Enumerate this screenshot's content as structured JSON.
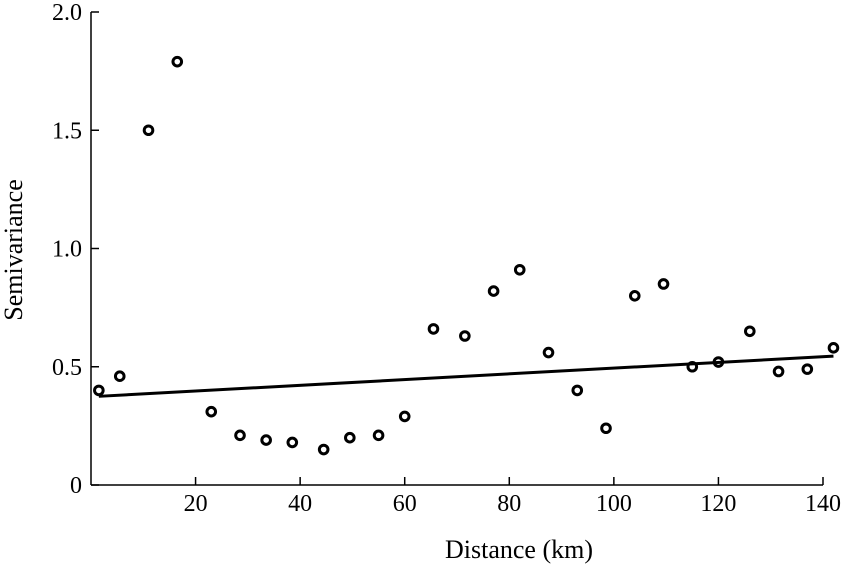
{
  "chart_data": {
    "type": "scatter",
    "xlabel": "Distance (km)",
    "ylabel": "Semivariance",
    "xlim": [
      0,
      140
    ],
    "ylim": [
      0,
      2.0
    ],
    "x_ticks": [
      20,
      40,
      60,
      80,
      100,
      120,
      140
    ],
    "x_tick_labels": [
      "20",
      "40",
      "60",
      "80",
      "100",
      "120",
      "140"
    ],
    "y_ticks": [
      0,
      0.5,
      1.0,
      1.5,
      2.0
    ],
    "y_tick_labels": [
      "0",
      "0.5",
      "1.0",
      "1.5",
      "2.0"
    ],
    "grid": false,
    "series": [
      {
        "points": [
          [
            1.5,
            0.4
          ],
          [
            5.5,
            0.46
          ],
          [
            11,
            1.5
          ],
          [
            16.5,
            1.79
          ],
          [
            23,
            0.31
          ],
          [
            28.5,
            0.21
          ],
          [
            33.5,
            0.19
          ],
          [
            38.5,
            0.18
          ],
          [
            44.5,
            0.15
          ],
          [
            49.5,
            0.2
          ],
          [
            55,
            0.21
          ],
          [
            60,
            0.29
          ],
          [
            65.5,
            0.66
          ],
          [
            71.5,
            0.63
          ],
          [
            77,
            0.82
          ],
          [
            82,
            0.91
          ],
          [
            87.5,
            0.56
          ],
          [
            93,
            0.4
          ],
          [
            98.5,
            0.24
          ],
          [
            104,
            0.8
          ],
          [
            109.5,
            0.85
          ],
          [
            115,
            0.5
          ],
          [
            120,
            0.52
          ],
          [
            126,
            0.65
          ],
          [
            131.5,
            0.48
          ],
          [
            137,
            0.49
          ],
          [
            142,
            0.58
          ]
        ]
      }
    ],
    "trend_line": {
      "x": [
        1.5,
        142
      ],
      "y": [
        0.375,
        0.545
      ]
    }
  }
}
